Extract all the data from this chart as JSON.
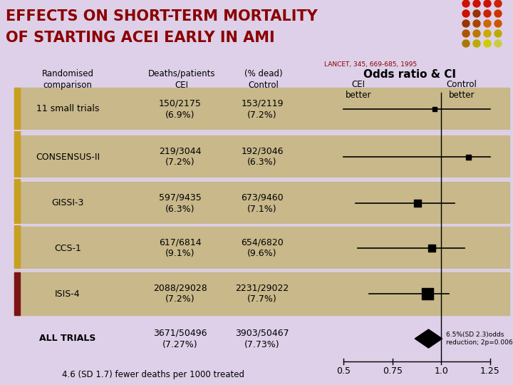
{
  "title_line1": "EFFECTS ON SHORT-TERM MORTALITY",
  "title_line2": "OF STARTING ACEI EARLY IN AMI",
  "title_color": "#8B0000",
  "background_color": "#DDD0E8",
  "table_bg_color": "#C8B88A",
  "reference": "LANCET, 345, 669-685, 1995",
  "col_header0": "Randomised\ncomparison",
  "col_header1": "Deaths/patients\nCEI",
  "col_header2": "(% dead)\nControl",
  "odds_header": "Odds ratio & CI",
  "cei_better": "CEI\nbetter",
  "control_better": "Control\nbetter",
  "rows": [
    {
      "label": "11 small trials",
      "cei": "150/2175\n(6.9%)",
      "control": "153/2119\n(7.2%)",
      "or": 0.965,
      "ci_low": 0.5,
      "ci_high": 1.25,
      "sq_size": 6
    },
    {
      "label": "CONSENSUS-II",
      "cei": "219/3044\n(7.2%)",
      "control": "192/3046\n(6.3%)",
      "or": 1.14,
      "ci_low": 0.5,
      "ci_high": 1.25,
      "sq_size": 7
    },
    {
      "label": "GISSI-3",
      "cei": "597/9435\n(6.3%)",
      "control": "673/9460\n(7.1%)",
      "or": 0.88,
      "ci_low": 0.56,
      "ci_high": 1.07,
      "sq_size": 10
    },
    {
      "label": "CCS-1",
      "cei": "617/6814\n(9.1%)",
      "control": "654/6820\n(9.6%)",
      "or": 0.95,
      "ci_low": 0.57,
      "ci_high": 1.12,
      "sq_size": 10
    },
    {
      "label": "ISIS-4",
      "cei": "2088/29028\n(7.2%)",
      "control": "2231/29022\n(7.7%)",
      "or": 0.93,
      "ci_low": 0.63,
      "ci_high": 1.04,
      "sq_size": 16
    }
  ],
  "all_trials": {
    "label": "ALL TRIALS",
    "cei": "3671/50496\n(7.27%)",
    "control": "3903/50467\n(7.73%)",
    "or": 0.935,
    "ci_low": 0.865,
    "ci_high": 1.005,
    "annotation": "6.5%(SD 2.3)odds\nreduction; 2p=0.006"
  },
  "footnote": "4.6 (SD 1.7) fewer deaths per 1000 treated",
  "x_ticks": [
    0.5,
    0.75,
    1.0,
    1.25
  ],
  "dot_colors_grid": [
    [
      "#CC1100",
      "#CC1100",
      "#CC1100",
      "#CC2200"
    ],
    [
      "#CC1100",
      "#993300",
      "#CC2200",
      "#CC3300"
    ],
    [
      "#993300",
      "#AA4400",
      "#CC6600",
      "#CC5500"
    ],
    [
      "#AA5500",
      "#BB7700",
      "#CCAA00",
      "#BBAA00"
    ],
    [
      "#AA7700",
      "#BBAA00",
      "#CCCC00",
      "#CCCC44"
    ]
  ],
  "left_bar_gold": "#C8A020",
  "left_bar_dark": "#7B1515"
}
